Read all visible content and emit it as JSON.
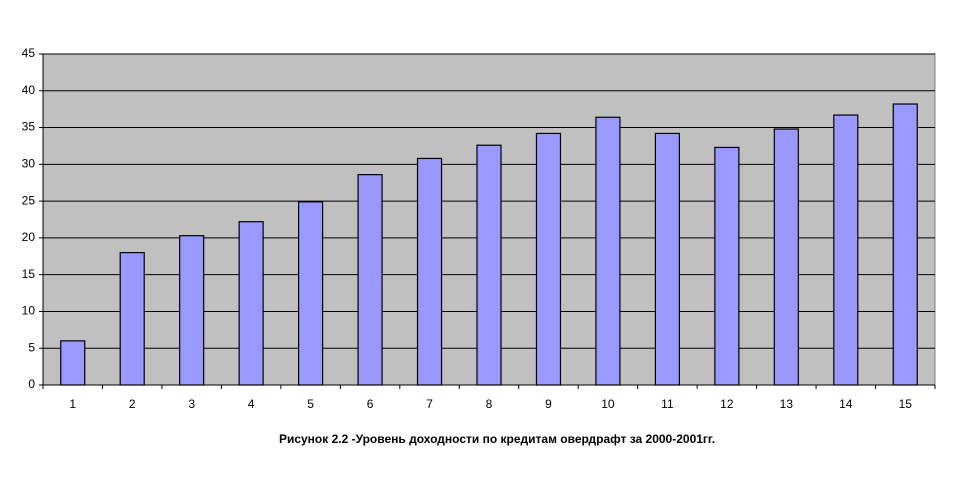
{
  "chart_data": {
    "type": "bar",
    "title": "Рисунок 2.2 -Уровень доходности по кредитам овердрафт за 2000-2001гг.",
    "categories": [
      "1",
      "2",
      "3",
      "4",
      "5",
      "6",
      "7",
      "8",
      "9",
      "10",
      "11",
      "12",
      "13",
      "14",
      "15"
    ],
    "values": [
      6,
      18,
      20.3,
      22.2,
      24.9,
      28.6,
      30.8,
      32.6,
      34.2,
      36.4,
      34.2,
      32.3,
      34.8,
      36.7,
      38.2
    ],
    "color": "#9999ff",
    "ylim": [
      0,
      45
    ],
    "yticks": [
      0,
      5,
      10,
      15,
      20,
      25,
      30,
      35,
      40,
      45
    ],
    "grid": true
  }
}
